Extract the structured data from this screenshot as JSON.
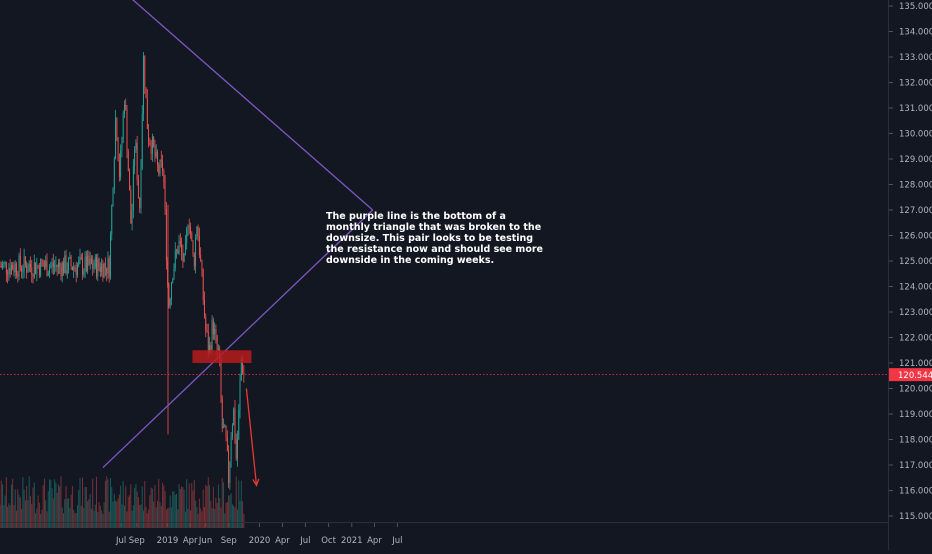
{
  "chart_data": {
    "type": "candlestick",
    "y_axis": {
      "range": [
        114.4,
        135.2
      ],
      "ticks": [
        "115.000",
        "116.000",
        "117.000",
        "118.000",
        "119.000",
        "120.000",
        "121.000",
        "122.000",
        "123.000",
        "124.000",
        "125.000",
        "126.000",
        "127.000",
        "128.000",
        "129.000",
        "130.000",
        "131.000",
        "132.000",
        "133.000",
        "134.000",
        "135.000"
      ]
    },
    "x_axis": {
      "labels": [
        {
          "label": "Jul",
          "date": "2018-07-01"
        },
        {
          "label": "Sep",
          "date": "2018-09-01"
        },
        {
          "label": "2019",
          "date": "2019-01-01"
        },
        {
          "label": "Apr",
          "date": "2019-04-01"
        },
        {
          "label": "Jun",
          "date": "2019-06-01"
        },
        {
          "label": "Sep",
          "date": "2019-09-01"
        },
        {
          "label": "2020",
          "date": "2020-01-01"
        },
        {
          "label": "Apr",
          "date": "2020-04-01"
        },
        {
          "label": "Jul",
          "date": "2020-07-01"
        },
        {
          "label": "Oct",
          "date": "2020-10-01"
        },
        {
          "label": "2021",
          "date": "2021-01-01"
        },
        {
          "label": "Apr",
          "date": "2021-04-01"
        },
        {
          "label": "Jul",
          "date": "2021-07-01"
        }
      ]
    },
    "current_price": "120.544",
    "price_path": [
      {
        "date": "2018-05-15",
        "price": 124.8
      },
      {
        "date": "2018-06-10",
        "price": 130.8
      },
      {
        "date": "2018-06-25",
        "price": 128.3
      },
      {
        "date": "2018-07-15",
        "price": 131.6
      },
      {
        "date": "2018-08-10",
        "price": 126.2
      },
      {
        "date": "2018-08-25",
        "price": 129.9
      },
      {
        "date": "2018-09-12",
        "price": 126.9
      },
      {
        "date": "2018-09-28",
        "price": 133.0
      },
      {
        "date": "2018-10-15",
        "price": 130.0
      },
      {
        "date": "2018-11-05",
        "price": 129.4
      },
      {
        "date": "2018-11-25",
        "price": 128.5
      },
      {
        "date": "2018-12-15",
        "price": 128.7
      },
      {
        "date": "2019-01-05",
        "price": 123.2
      },
      {
        "date": "2019-01-20",
        "price": 124.6
      },
      {
        "date": "2019-02-15",
        "price": 125.7
      },
      {
        "date": "2019-03-10",
        "price": 124.8
      },
      {
        "date": "2019-03-25",
        "price": 127.0
      },
      {
        "date": "2019-04-15",
        "price": 124.8
      },
      {
        "date": "2019-04-28",
        "price": 126.6
      },
      {
        "date": "2019-05-15",
        "price": 124.6
      },
      {
        "date": "2019-05-31",
        "price": 122.4
      },
      {
        "date": "2019-06-15",
        "price": 121.4
      },
      {
        "date": "2019-06-30",
        "price": 122.6
      },
      {
        "date": "2019-07-15",
        "price": 121.5
      },
      {
        "date": "2019-07-25",
        "price": 121.3
      },
      {
        "date": "2019-08-05",
        "price": 118.5
      },
      {
        "date": "2019-08-20",
        "price": 118.0
      },
      {
        "date": "2019-09-01",
        "price": 116.4
      },
      {
        "date": "2019-09-10",
        "price": 118.3
      },
      {
        "date": "2019-09-20",
        "price": 119.2
      },
      {
        "date": "2019-10-01",
        "price": 117.2
      },
      {
        "date": "2019-10-10",
        "price": 118.8
      },
      {
        "date": "2019-10-20",
        "price": 121.2
      },
      {
        "date": "2019-10-31",
        "price": 120.544
      }
    ],
    "annotations": {
      "note": "The purple line is the bottom of a monthly triangle that was broken to the downsize. This pair looks to be testing the resistance now and should see more downside in the coming weeks.",
      "triangle_apex": {
        "date": "2021-03-25",
        "price": 127.0
      },
      "triangle_upper_start": {
        "date": "2018-08-10",
        "price": 135.3
      },
      "triangle_lower_start": {
        "date": "2018-04-20",
        "price": 116.9
      },
      "resistance_zone": {
        "from": "2019-04-10",
        "to": "2019-11-30",
        "low": 121.0,
        "high": 121.5
      },
      "arrow": {
        "from_date": "2019-11-10",
        "from_price": 120.0,
        "to_date": "2019-12-20",
        "to_price": 116.2
      }
    },
    "colors": {
      "background": "#131722",
      "up": "#26a69a",
      "down": "#ef5350",
      "triangle": "#7e57c2",
      "zone": "#b71c1c",
      "arrow": "#e53935",
      "price_line": "#f23645"
    }
  }
}
